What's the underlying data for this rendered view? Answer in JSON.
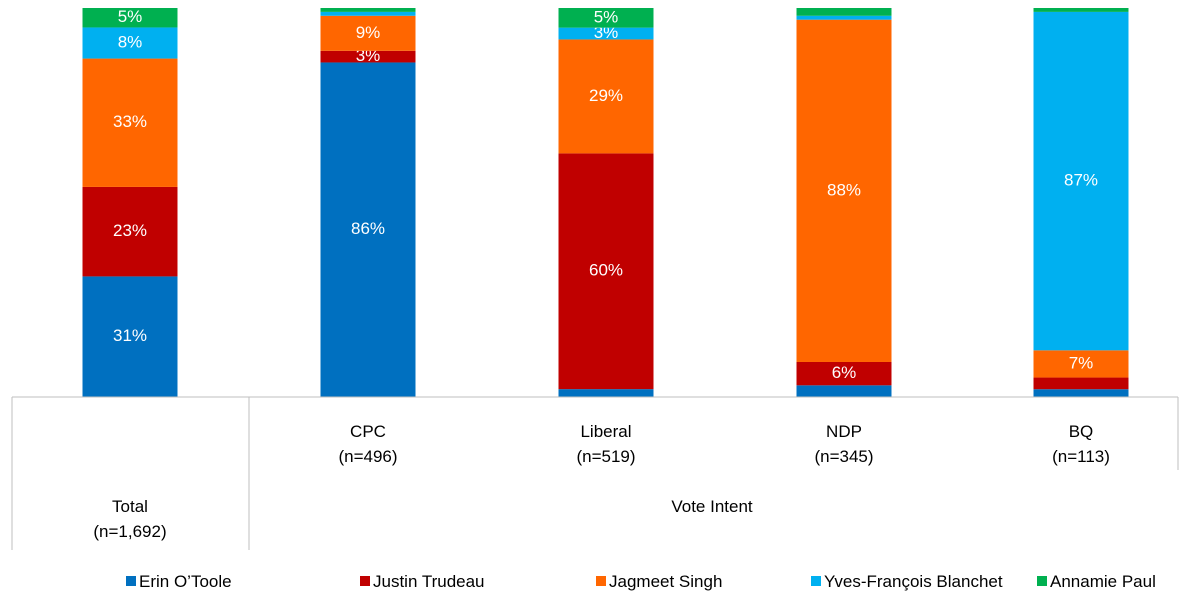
{
  "chart_data": {
    "type": "bar",
    "stacked": true,
    "normalized": true,
    "categories": [
      {
        "label": "Total",
        "n": "(n=1,692)"
      },
      {
        "label": "CPC",
        "n": "(n=496)"
      },
      {
        "label": "Liberal",
        "n": "(n=519)"
      },
      {
        "label": "NDP",
        "n": "(n=345)"
      },
      {
        "label": "BQ",
        "n": "(n=113)"
      }
    ],
    "group_label": "Vote Intent",
    "series": [
      {
        "name": "Erin O’Toole",
        "color": "#0070c0",
        "values": [
          31,
          86,
          2,
          3,
          2
        ]
      },
      {
        "name": "Justin Trudeau",
        "color": "#c00000",
        "values": [
          23,
          3,
          60,
          6,
          3
        ]
      },
      {
        "name": "Jagmeet Singh",
        "color": "#ff6600",
        "values": [
          33,
          9,
          29,
          88,
          7
        ]
      },
      {
        "name": "Yves-François Blanchet",
        "color": "#00b0f0",
        "values": [
          8,
          1,
          3,
          1,
          87
        ]
      },
      {
        "name": "Annamie Paul",
        "color": "#00b050",
        "values": [
          5,
          1,
          5,
          2,
          1
        ]
      }
    ],
    "data_labels": [
      [
        "31%",
        "86%",
        "",
        "",
        ""
      ],
      [
        "23%",
        "3%",
        "60%",
        "6%",
        ""
      ],
      [
        "33%",
        "9%",
        "29%",
        "88%",
        "7%"
      ],
      [
        "8%",
        "",
        "3%",
        "",
        "87%"
      ],
      [
        "5%",
        "",
        "5%",
        "",
        ""
      ]
    ],
    "ylim": [
      0,
      100
    ],
    "legend_position": "bottom"
  }
}
